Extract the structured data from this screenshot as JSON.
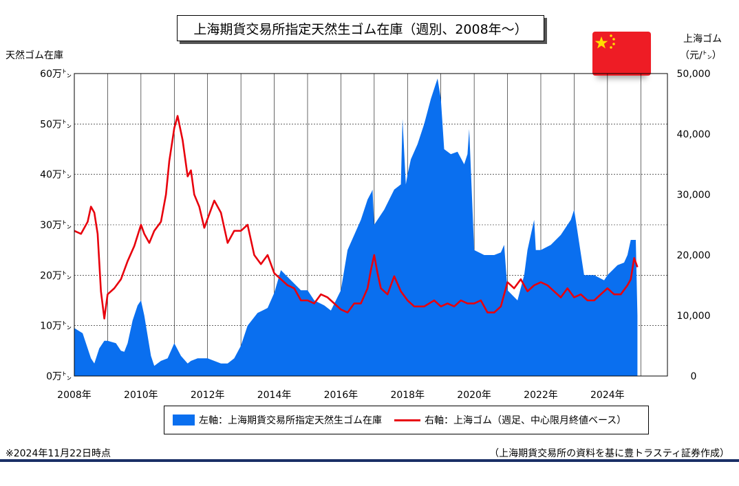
{
  "chart_data": {
    "type": "area+line",
    "title": "上海期貨交易所指定天然生ゴム在庫（週別、2008年～）",
    "left_axis": {
      "title": "天然ゴム在庫",
      "range": [
        0,
        60
      ],
      "ticks": [
        "0万㌧",
        "10万㌧",
        "20万㌧",
        "30万㌧",
        "40万㌧",
        "50万㌧",
        "60万㌧"
      ]
    },
    "right_axis": {
      "title_line1": "上海ゴム",
      "title_line2": "（元/㌧）",
      "range": [
        0,
        50000
      ],
      "ticks": [
        "0",
        "10,000",
        "20,000",
        "30,000",
        "40,000",
        "50,000"
      ]
    },
    "x_axis": {
      "range": [
        2008,
        2025.8
      ],
      "ticks": [
        "2008年",
        "2010年",
        "2012年",
        "2014年",
        "2016年",
        "2018年",
        "2020年",
        "2022年",
        "2024年"
      ]
    },
    "grid": "vertical yearly lines, dashed horizontal lines",
    "series": [
      {
        "name": "左軸：上海期貨交易所指定天然生ゴム在庫",
        "axis": "left",
        "kind": "area",
        "color": "#0a6fef",
        "x": [
          2008.0,
          2008.25,
          2008.5,
          2008.6,
          2008.75,
          2008.9,
          2009.0,
          2009.25,
          2009.4,
          2009.5,
          2009.6,
          2009.75,
          2009.9,
          2010.0,
          2010.1,
          2010.3,
          2010.4,
          2010.6,
          2010.8,
          2011.0,
          2011.2,
          2011.4,
          2011.5,
          2011.7,
          2012.0,
          2012.4,
          2012.6,
          2012.8,
          2013.0,
          2013.2,
          2013.5,
          2013.8,
          2014.0,
          2014.2,
          2014.5,
          2014.8,
          2015.0,
          2015.2,
          2015.5,
          2015.7,
          2016.0,
          2016.2,
          2016.4,
          2016.6,
          2016.8,
          2016.92,
          2016.95,
          2017.0,
          2017.3,
          2017.6,
          2017.8,
          2017.85,
          2017.95,
          2018.0,
          2018.1,
          2018.3,
          2018.5,
          2018.7,
          2018.85,
          2018.9,
          2019.0,
          2019.1,
          2019.3,
          2019.5,
          2019.7,
          2019.8,
          2019.85,
          2020.0,
          2020.3,
          2020.6,
          2020.8,
          2020.9,
          2021.0,
          2021.3,
          2021.5,
          2021.6,
          2021.7,
          2021.8,
          2021.85,
          2022.0,
          2022.3,
          2022.6,
          2022.9,
          2023.0,
          2023.3,
          2023.6,
          2023.9,
          2024.0,
          2024.3,
          2024.5,
          2024.6,
          2024.7,
          2024.85,
          2024.9
        ],
        "y": [
          9.5,
          8.5,
          3.5,
          2.5,
          5.5,
          7.0,
          7.0,
          6.5,
          5.0,
          4.8,
          6.5,
          11.0,
          14.0,
          15.0,
          12.0,
          4.0,
          2.0,
          3.0,
          3.5,
          6.5,
          4.0,
          2.5,
          3.0,
          3.5,
          3.5,
          2.5,
          2.5,
          3.5,
          6.0,
          10.0,
          12.5,
          13.5,
          16.5,
          21.0,
          19.0,
          17.0,
          17.0,
          15.0,
          14.0,
          13.0,
          17.0,
          25.0,
          28.0,
          31.0,
          35.0,
          36.5,
          37.0,
          30.0,
          33.0,
          37.0,
          38.0,
          51.0,
          38.0,
          40.0,
          43.0,
          46.0,
          50.0,
          55.0,
          58.0,
          59.0,
          55.0,
          45.0,
          44.0,
          44.5,
          42.0,
          44.0,
          49.0,
          25.0,
          24.0,
          24.0,
          24.5,
          26.0,
          17.0,
          15.0,
          20.0,
          25.0,
          28.0,
          31.0,
          25.0,
          25.0,
          26.0,
          28.0,
          31.0,
          33.0,
          20.0,
          20.0,
          19.0,
          20.0,
          22.0,
          22.5,
          24.0,
          27.0,
          27.0,
          12.0
        ]
      },
      {
        "name": "右軸：上海ゴム（週足、中心限月終値ベース）",
        "axis": "right",
        "kind": "line",
        "color": "#e8000c",
        "x": [
          2008.0,
          2008.2,
          2008.4,
          2008.5,
          2008.6,
          2008.7,
          2008.8,
          2008.9,
          2009.0,
          2009.2,
          2009.4,
          2009.6,
          2009.8,
          2010.0,
          2010.1,
          2010.25,
          2010.4,
          2010.6,
          2010.75,
          2010.85,
          2011.0,
          2011.1,
          2011.25,
          2011.4,
          2011.5,
          2011.6,
          2011.75,
          2011.9,
          2012.0,
          2012.2,
          2012.4,
          2012.6,
          2012.8,
          2013.0,
          2013.2,
          2013.4,
          2013.6,
          2013.8,
          2014.0,
          2014.2,
          2014.4,
          2014.6,
          2014.8,
          2015.0,
          2015.2,
          2015.4,
          2015.6,
          2015.8,
          2016.0,
          2016.2,
          2016.4,
          2016.6,
          2016.8,
          2016.9,
          2017.0,
          2017.1,
          2017.2,
          2017.4,
          2017.6,
          2017.8,
          2018.0,
          2018.2,
          2018.5,
          2018.8,
          2019.0,
          2019.2,
          2019.4,
          2019.6,
          2019.8,
          2020.0,
          2020.2,
          2020.4,
          2020.6,
          2020.8,
          2020.9,
          2021.0,
          2021.2,
          2021.4,
          2021.6,
          2021.8,
          2022.0,
          2022.2,
          2022.4,
          2022.6,
          2022.8,
          2023.0,
          2023.2,
          2023.4,
          2023.6,
          2023.8,
          2024.0,
          2024.2,
          2024.4,
          2024.6,
          2024.7,
          2024.8,
          2024.9
        ],
        "y": [
          24000,
          23500,
          25500,
          28000,
          27000,
          23500,
          14000,
          9500,
          13500,
          14500,
          16000,
          19000,
          21500,
          25000,
          23500,
          22000,
          24000,
          25500,
          30000,
          35500,
          41000,
          43000,
          39000,
          33000,
          34000,
          30000,
          28000,
          24500,
          26000,
          29000,
          27000,
          22000,
          24000,
          24000,
          25000,
          20000,
          18500,
          20000,
          17000,
          16000,
          15000,
          14500,
          12500,
          12500,
          12000,
          13500,
          13000,
          12000,
          11000,
          10500,
          12000,
          12000,
          14500,
          17500,
          20000,
          17000,
          14500,
          13500,
          16500,
          14000,
          12500,
          11500,
          11500,
          12500,
          11500,
          12000,
          11500,
          12500,
          12000,
          12000,
          12500,
          10500,
          10500,
          11500,
          13500,
          15500,
          14500,
          16000,
          14000,
          15000,
          15500,
          15000,
          14000,
          13000,
          14500,
          13000,
          13500,
          12500,
          12500,
          13500,
          14500,
          13500,
          13500,
          15000,
          16000,
          19500,
          18000
        ]
      }
    ]
  },
  "legend": {
    "bar_label": "左軸：上海期貨交易所指定天然生ゴム在庫",
    "line_label": "右軸：上海ゴム（週足、中心限月終値ベース）"
  },
  "footer": {
    "left": "※2024年11月22日時点",
    "right": "（上海期貨交易所の資料を基に豊トラスティ証券作成）"
  },
  "flag": {
    "name": "china-flag",
    "red": "#ee1c25",
    "yellow": "#ffde00"
  }
}
